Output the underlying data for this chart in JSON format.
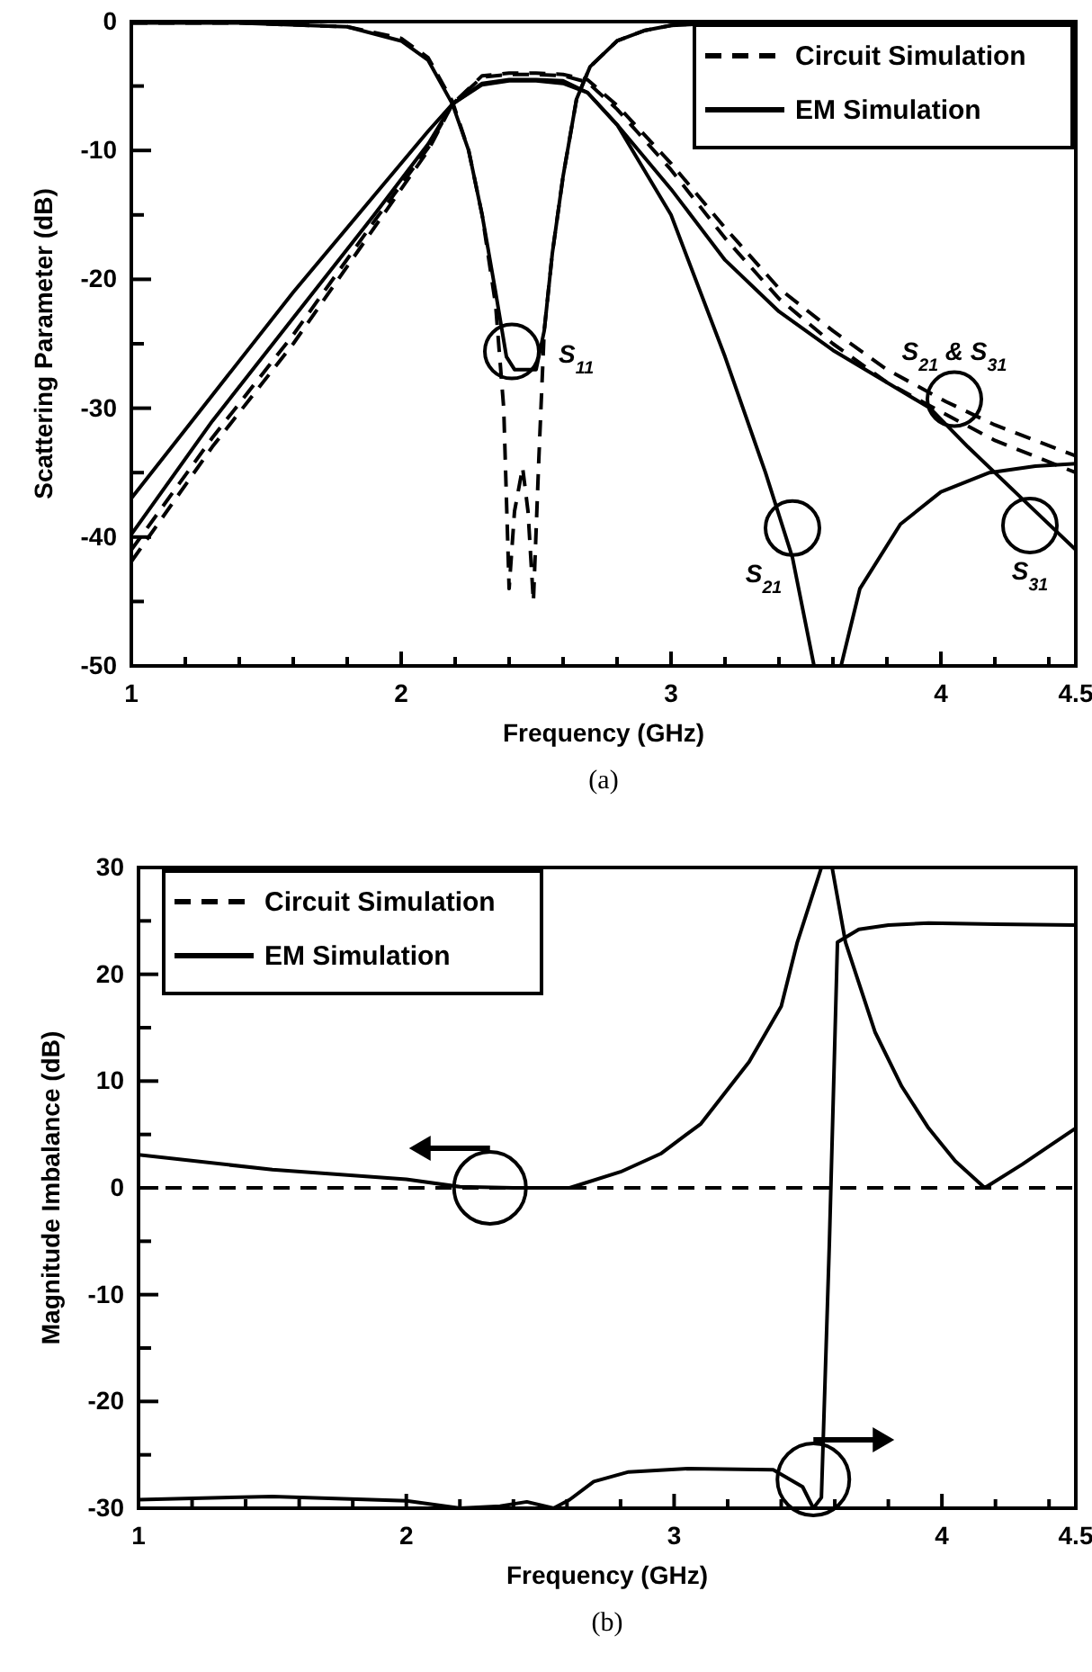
{
  "chart_data": [
    {
      "type": "line",
      "xlabel": "Frequency (GHz)",
      "ylabel": "Scattering Parameter (dB)",
      "xlim": [
        1,
        4.5
      ],
      "ylim": [
        -50,
        0
      ],
      "xticks": [
        1,
        {
          "value": 1.2,
          "label": null
        },
        {
          "value": 1.4,
          "label": null
        },
        {
          "value": 1.6,
          "label": null
        },
        {
          "value": 1.8,
          "label": null
        },
        2,
        {
          "value": 2.2,
          "label": null
        },
        {
          "value": 2.4,
          "label": null
        },
        {
          "value": 2.6,
          "label": null
        },
        {
          "value": 2.8,
          "label": null
        },
        3,
        {
          "value": 3.2,
          "label": null
        },
        {
          "value": 3.4,
          "label": null
        },
        {
          "value": 3.6,
          "label": null
        },
        {
          "value": 3.8,
          "label": null
        },
        4,
        {
          "value": 4.2,
          "label": null
        },
        {
          "value": 4.4,
          "label": null
        },
        4.5
      ],
      "yticks": [
        0,
        {
          "value": -5,
          "label": null
        },
        -10,
        {
          "value": -15,
          "label": null
        },
        -20,
        {
          "value": -25,
          "label": null
        },
        -30,
        {
          "value": -35,
          "label": null
        },
        -40,
        {
          "value": -45,
          "label": null
        },
        -50
      ],
      "grid": false,
      "legend": "top right",
      "series": [
        {
          "name": "Circuit Simulation",
          "color": "#000000",
          "line_style": "dashed",
          "x": [
            1,
            1.4,
            1.8,
            2.0,
            2.1,
            2.19,
            2.25,
            2.3,
            2.35,
            2.38,
            2.4,
            2.42,
            2.45,
            2.47,
            2.49,
            2.51,
            2.53,
            2.56,
            2.6,
            2.65,
            2.7,
            2.8,
            2.9,
            3.0,
            3.1,
            3.3,
            3.6,
            4.0,
            4.5
          ],
          "values": [
            -0.1,
            -0.1,
            -0.4,
            -1.3,
            -2.8,
            -6.2,
            -10,
            -15,
            -22,
            -30,
            -44,
            -38,
            -34.6,
            -38,
            -45,
            -34,
            -24,
            -18,
            -12,
            -6,
            -3.5,
            -1.5,
            -0.7,
            -0.3,
            -0.1,
            -0.1,
            -0.1,
            -0.1,
            -0.1
          ]
        },
        {
          "color": "#000000",
          "line_style": "dashed",
          "x": [
            1,
            1.3,
            1.6,
            1.9,
            2.1,
            2.19,
            2.3,
            2.4,
            2.5,
            2.6,
            2.69,
            2.8,
            3.0,
            3.2,
            3.4,
            3.6,
            3.8,
            4.02,
            4.2,
            4.5
          ],
          "values": [
            -41.9,
            -33,
            -25,
            -16,
            -10,
            -6.4,
            -4.2,
            -4,
            -4,
            -4.1,
            -4.5,
            -6.5,
            -11,
            -16,
            -20.7,
            -24,
            -27,
            -29.5,
            -31.3,
            -33.7
          ]
        },
        {
          "color": "#000000",
          "line_style": "dashed",
          "x": [
            1,
            1.3,
            1.6,
            1.9,
            2.1,
            2.19,
            2.3,
            2.4,
            2.5,
            2.6,
            2.69,
            2.8,
            3.0,
            3.2,
            3.4,
            3.6,
            3.8,
            4.02,
            4.2,
            4.5
          ],
          "values": [
            -41,
            -32.3,
            -24.3,
            -15.5,
            -9.8,
            -6.4,
            -4.3,
            -4.1,
            -4.1,
            -4.2,
            -4.7,
            -6.8,
            -11.5,
            -16.8,
            -21.5,
            -25,
            -28,
            -30.5,
            -32.5,
            -35
          ]
        },
        {
          "name": "EM Simulation",
          "color": "#000000",
          "line_style": "solid",
          "x": [
            1,
            1.4,
            1.8,
            2.0,
            2.1,
            2.19,
            2.25,
            2.3,
            2.35,
            2.39,
            2.42,
            2.5,
            2.53,
            2.56,
            2.6,
            2.65,
            2.7,
            2.8,
            2.9,
            3.0,
            3.1,
            3.3,
            3.6,
            4.0,
            4.5
          ],
          "values": [
            -0.1,
            -0.1,
            -0.4,
            -1.5,
            -3,
            -6.4,
            -10,
            -15,
            -21,
            -26,
            -27,
            -27,
            -24,
            -18,
            -12,
            -6,
            -3.5,
            -1.5,
            -0.7,
            -0.3,
            -0.2,
            -0.1,
            -0.1,
            -0.1,
            -0.1
          ]
        },
        {
          "color": "#000000",
          "line_style": "solid",
          "x": [
            1,
            1.3,
            1.6,
            1.9,
            2.1,
            2.19,
            2.3,
            2.4,
            2.5,
            2.6,
            2.69,
            2.8,
            3.0,
            3.2,
            3.35,
            3.45,
            3.53,
            3.58,
            3.63,
            3.7,
            3.85,
            4.0,
            4.18,
            4.35,
            4.5
          ],
          "values": [
            -37,
            -29,
            -21,
            -13.5,
            -8.5,
            -6.4,
            -4.8,
            -4.5,
            -4.5,
            -4.6,
            -5.5,
            -8,
            -15,
            -26,
            -35,
            -41.6,
            -50,
            null,
            -50,
            -44,
            -39,
            -36.5,
            -35,
            -34.5,
            -34.3
          ]
        },
        {
          "color": "#000000",
          "line_style": "solid",
          "x": [
            1,
            1.3,
            1.6,
            1.9,
            2.1,
            2.19,
            2.3,
            2.4,
            2.5,
            2.6,
            2.69,
            2.8,
            3.0,
            3.2,
            3.4,
            3.6,
            3.8,
            3.96,
            4.1,
            4.3,
            4.5
          ],
          "values": [
            -39.8,
            -31,
            -23,
            -15,
            -9.5,
            -6.4,
            -4.9,
            -4.6,
            -4.6,
            -4.8,
            -5.5,
            -8,
            -13,
            -18.5,
            -22.5,
            -25.5,
            -28,
            -30,
            -33,
            -37,
            -41
          ]
        }
      ],
      "annotations": [
        {
          "text": "S$_{11}$",
          "x": 2.41,
          "y": -25.6
        },
        {
          "text": "S$_{21}$ & S$_{31}$",
          "x": 4.05,
          "y": -29.3
        },
        {
          "text": "S$_{21}$",
          "x": 3.45,
          "y": -39.3
        },
        {
          "text": "S$_{31}$",
          "x": 4.33,
          "y": -39.1
        },
        "(a)"
      ]
    },
    {
      "type": "line",
      "xlabel": "Frequency (GHz)",
      "ylabel": "Magnitude Imbalance (dB)",
      "xlim": [
        1,
        4.5
      ],
      "ylim": [
        -30,
        30
      ],
      "xticks": [
        1,
        {
          "value": 1.2,
          "label": null
        },
        {
          "value": 1.4,
          "label": null
        },
        {
          "value": 1.6,
          "label": null
        },
        {
          "value": 1.8,
          "label": null
        },
        2,
        {
          "value": 2.2,
          "label": null
        },
        {
          "value": 2.4,
          "label": null
        },
        {
          "value": 2.6,
          "label": null
        },
        {
          "value": 2.8,
          "label": null
        },
        3,
        {
          "value": 3.2,
          "label": null
        },
        {
          "value": 3.4,
          "label": null
        },
        {
          "value": 3.6,
          "label": null
        },
        {
          "value": 3.8,
          "label": null
        },
        4,
        {
          "value": 4.2,
          "label": null
        },
        {
          "value": 4.4,
          "label": null
        },
        4.5
      ],
      "yticks": [
        30,
        {
          "value": 25,
          "label": null
        },
        20,
        {
          "value": 15,
          "label": null
        },
        10,
        {
          "value": 5,
          "label": null
        },
        0,
        {
          "value": -5,
          "label": null
        },
        -10,
        {
          "value": -15,
          "label": null
        },
        -20,
        {
          "value": -25,
          "label": null
        },
        -30
      ],
      "grid": false,
      "legend": "top left",
      "series": [
        {
          "name": "Circuit Simulation",
          "color": "#000000",
          "line_style": "dashed",
          "x": [
            1,
            4.5
          ],
          "values": [
            0,
            0
          ]
        },
        {
          "name": "EM Simulation",
          "color": "#000000",
          "line_style": "solid",
          "x": [
            1,
            1.5,
            2,
            2.2,
            2.4,
            2.61,
            2.8,
            2.95,
            3.1,
            3.28,
            3.4,
            3.46,
            3.55,
            3.59,
            3.64,
            3.75,
            3.85,
            3.95,
            4.05,
            4.16,
            4.3,
            4.5
          ],
          "values": [
            3.1,
            1.7,
            0.8,
            0.1,
            0,
            0,
            1.5,
            3.2,
            6,
            11.8,
            17,
            23,
            30,
            30,
            23,
            14.6,
            9.5,
            5.6,
            2.5,
            0,
            2.2,
            5.6
          ]
        },
        {
          "color": "#000000",
          "line_style": "solid",
          "x": [
            1,
            1.5,
            2,
            2.2,
            2.35,
            2.45,
            2.55,
            2.61,
            2.7,
            2.83,
            3.05,
            3.37,
            3.48,
            3.52,
            3.55,
            3.58,
            3.61,
            3.69,
            3.8,
            3.95,
            4.2,
            4.5
          ],
          "values": [
            -29.2,
            -28.9,
            -29.3,
            -30,
            -29.8,
            -29.4,
            -30,
            -29.2,
            -27.5,
            -26.6,
            -26.3,
            -26.4,
            -28,
            -30,
            -29,
            -5,
            23,
            24.2,
            24.6,
            24.8,
            24.7,
            24.6
          ]
        }
      ],
      "annotations": [
        "(b)"
      ]
    }
  ]
}
